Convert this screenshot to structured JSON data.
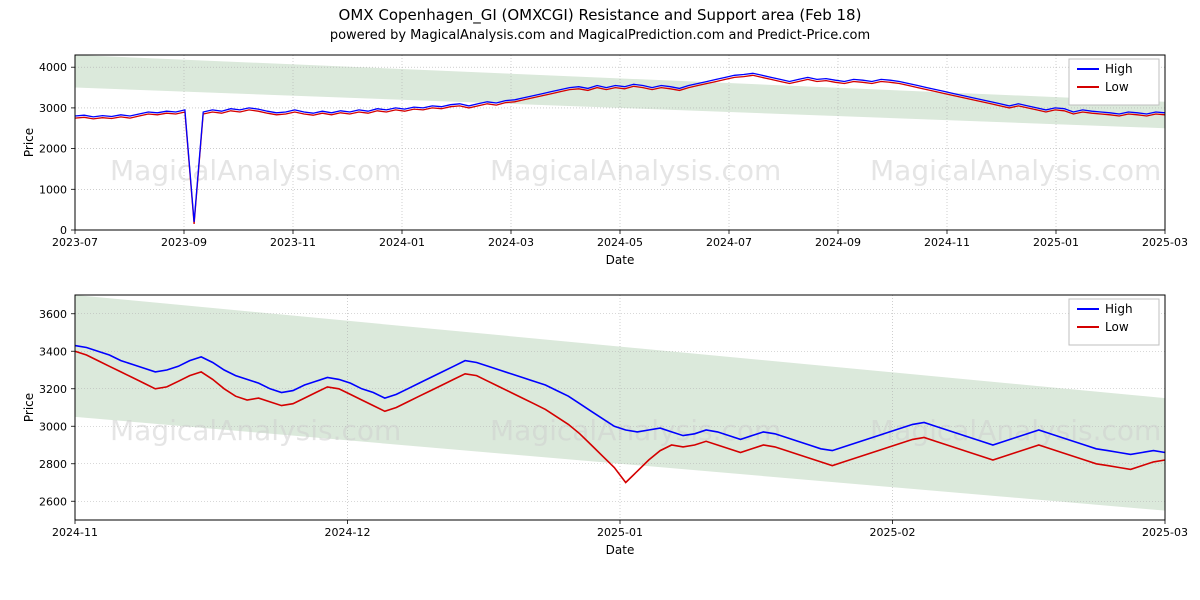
{
  "title": "OMX Copenhagen_GI (OMXCGI) Resistance and Support area (Feb 18)",
  "subtitle": "powered by MagicalAnalysis.com and MagicalPrediction.com and Predict-Price.com",
  "title_fontsize": 15,
  "subtitle_fontsize": 13,
  "watermark_text": "MagicalAnalysis.com",
  "watermark_color": "#d0d0d0",
  "chart1": {
    "type": "line",
    "ylabel": "Price",
    "xlabel": "Date",
    "background_color": "#ffffff",
    "grid_color": "#b0b0b0",
    "border_color": "#000000",
    "ylim": [
      0,
      4300
    ],
    "yticks": [
      0,
      1000,
      2000,
      3000,
      4000
    ],
    "xticks": [
      "2023-07",
      "2023-09",
      "2023-11",
      "2024-01",
      "2024-03",
      "2024-05",
      "2024-07",
      "2024-09",
      "2024-11",
      "2025-01",
      "2025-03"
    ],
    "xrange_months": 22,
    "legend": {
      "items": [
        "High",
        "Low"
      ],
      "colors": [
        "#0000ff",
        "#d40000"
      ]
    },
    "band_color": "#dbe9db",
    "band_top_start": 4300,
    "band_top_end": 3150,
    "band_bottom_start": 3500,
    "band_bottom_end": 2500,
    "series_high_color": "#0000ff",
    "series_low_color": "#d40000",
    "line_width": 1.3,
    "high": [
      2800,
      2820,
      2780,
      2810,
      2790,
      2830,
      2800,
      2850,
      2900,
      2880,
      2920,
      2900,
      2950,
      200,
      2900,
      2950,
      2920,
      2980,
      2950,
      3000,
      2970,
      2920,
      2880,
      2900,
      2950,
      2900,
      2870,
      2920,
      2880,
      2930,
      2900,
      2950,
      2920,
      2980,
      2950,
      3000,
      2970,
      3020,
      3000,
      3050,
      3030,
      3080,
      3100,
      3050,
      3100,
      3150,
      3120,
      3180,
      3200,
      3250,
      3300,
      3350,
      3400,
      3450,
      3500,
      3520,
      3480,
      3550,
      3500,
      3550,
      3520,
      3580,
      3550,
      3500,
      3550,
      3520,
      3480,
      3550,
      3600,
      3650,
      3700,
      3750,
      3800,
      3820,
      3850,
      3800,
      3750,
      3700,
      3650,
      3700,
      3750,
      3700,
      3720,
      3680,
      3650,
      3700,
      3680,
      3650,
      3700,
      3680,
      3650,
      3600,
      3550,
      3500,
      3450,
      3400,
      3350,
      3300,
      3250,
      3200,
      3150,
      3100,
      3050,
      3100,
      3050,
      3000,
      2950,
      3000,
      2980,
      2900,
      2950,
      2920,
      2900,
      2880,
      2850,
      2900,
      2880,
      2850,
      2900,
      2880
    ],
    "low": [
      2750,
      2770,
      2730,
      2760,
      2740,
      2780,
      2750,
      2800,
      2850,
      2830,
      2870,
      2850,
      2900,
      150,
      2850,
      2900,
      2870,
      2930,
      2900,
      2950,
      2920,
      2870,
      2830,
      2850,
      2900,
      2850,
      2820,
      2870,
      2830,
      2880,
      2850,
      2900,
      2870,
      2930,
      2900,
      2950,
      2920,
      2970,
      2950,
      3000,
      2980,
      3030,
      3050,
      3000,
      3050,
      3100,
      3070,
      3130,
      3150,
      3200,
      3250,
      3300,
      3350,
      3400,
      3450,
      3470,
      3430,
      3500,
      3450,
      3500,
      3470,
      3530,
      3500,
      3450,
      3500,
      3470,
      3430,
      3500,
      3550,
      3600,
      3650,
      3700,
      3750,
      3770,
      3800,
      3750,
      3700,
      3650,
      3600,
      3650,
      3700,
      3650,
      3670,
      3630,
      3600,
      3650,
      3630,
      3600,
      3650,
      3630,
      3600,
      3550,
      3500,
      3450,
      3400,
      3350,
      3300,
      3250,
      3200,
      3150,
      3100,
      3050,
      3000,
      3050,
      3000,
      2950,
      2900,
      2950,
      2930,
      2850,
      2900,
      2870,
      2850,
      2830,
      2800,
      2850,
      2830,
      2800,
      2850,
      2830
    ]
  },
  "chart2": {
    "type": "line",
    "ylabel": "Price",
    "xlabel": "Date",
    "background_color": "#ffffff",
    "grid_color": "#b0b0b0",
    "border_color": "#000000",
    "ylim": [
      2500,
      3700
    ],
    "yticks": [
      2600,
      2800,
      3000,
      3200,
      3400,
      3600
    ],
    "xticks": [
      "2024-11",
      "2024-12",
      "2025-01",
      "2025-02",
      "2025-03"
    ],
    "xrange_months": 6,
    "legend": {
      "items": [
        "High",
        "Low"
      ],
      "colors": [
        "#0000ff",
        "#d40000"
      ]
    },
    "band_color": "#dbe9db",
    "band_top_start": 3700,
    "band_top_end": 3150,
    "band_bottom_start": 3050,
    "band_bottom_end": 2550,
    "series_high_color": "#0000ff",
    "series_low_color": "#d40000",
    "line_width": 1.6,
    "high": [
      3430,
      3420,
      3400,
      3380,
      3350,
      3330,
      3310,
      3290,
      3300,
      3320,
      3350,
      3370,
      3340,
      3300,
      3270,
      3250,
      3230,
      3200,
      3180,
      3190,
      3220,
      3240,
      3260,
      3250,
      3230,
      3200,
      3180,
      3150,
      3170,
      3200,
      3230,
      3260,
      3290,
      3320,
      3350,
      3340,
      3320,
      3300,
      3280,
      3260,
      3240,
      3220,
      3190,
      3160,
      3120,
      3080,
      3040,
      3000,
      2980,
      2970,
      2980,
      2990,
      2970,
      2950,
      2960,
      2980,
      2970,
      2950,
      2930,
      2950,
      2970,
      2960,
      2940,
      2920,
      2900,
      2880,
      2870,
      2890,
      2910,
      2930,
      2950,
      2970,
      2990,
      3010,
      3020,
      3000,
      2980,
      2960,
      2940,
      2920,
      2900,
      2920,
      2940,
      2960,
      2980,
      2960,
      2940,
      2920,
      2900,
      2880,
      2870,
      2860,
      2850,
      2860,
      2870,
      2860
    ],
    "low": [
      3400,
      3380,
      3350,
      3320,
      3290,
      3260,
      3230,
      3200,
      3210,
      3240,
      3270,
      3290,
      3250,
      3200,
      3160,
      3140,
      3150,
      3130,
      3110,
      3120,
      3150,
      3180,
      3210,
      3200,
      3170,
      3140,
      3110,
      3080,
      3100,
      3130,
      3160,
      3190,
      3220,
      3250,
      3280,
      3270,
      3240,
      3210,
      3180,
      3150,
      3120,
      3090,
      3050,
      3010,
      2960,
      2900,
      2840,
      2780,
      2700,
      2760,
      2820,
      2870,
      2900,
      2890,
      2900,
      2920,
      2900,
      2880,
      2860,
      2880,
      2900,
      2890,
      2870,
      2850,
      2830,
      2810,
      2790,
      2810,
      2830,
      2850,
      2870,
      2890,
      2910,
      2930,
      2940,
      2920,
      2900,
      2880,
      2860,
      2840,
      2820,
      2840,
      2860,
      2880,
      2900,
      2880,
      2860,
      2840,
      2820,
      2800,
      2790,
      2780,
      2770,
      2790,
      2810,
      2820
    ]
  }
}
